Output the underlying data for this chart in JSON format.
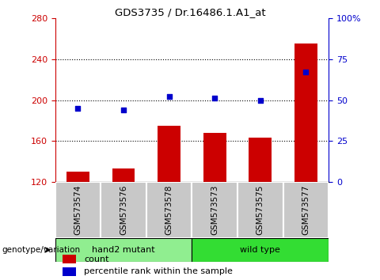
{
  "title": "GDS3735 / Dr.16486.1.A1_at",
  "samples": [
    "GSM573574",
    "GSM573576",
    "GSM573578",
    "GSM573573",
    "GSM573575",
    "GSM573577"
  ],
  "counts": [
    130,
    133,
    175,
    168,
    163,
    255
  ],
  "percentiles": [
    45,
    44,
    52,
    51,
    50,
    67
  ],
  "ylim_left": [
    120,
    280
  ],
  "ylim_right": [
    0,
    100
  ],
  "yticks_left": [
    120,
    160,
    200,
    240,
    280
  ],
  "yticks_right": [
    0,
    25,
    50,
    75,
    100
  ],
  "bar_color": "#cc0000",
  "dot_color": "#0000cc",
  "bar_bottom": 120,
  "hand2_color": "#90ee90",
  "wildtype_color": "#33dd33",
  "group_label": "genotype/variation",
  "xlabel_bg_color": "#c8c8c8",
  "xlabel_border_color": "#ffffff"
}
